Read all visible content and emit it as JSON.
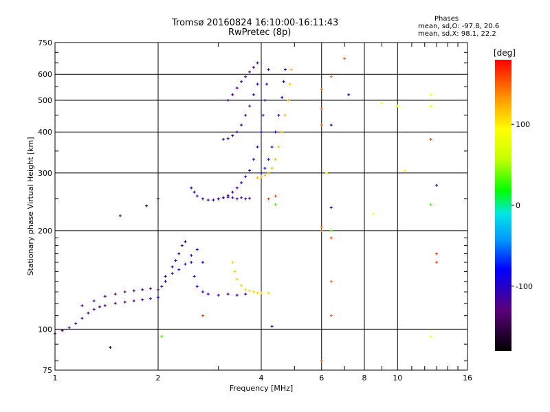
{
  "chart_data": {
    "type": "scatter",
    "title": "Tromsø 20160824 16:10:00-16:11:43",
    "subtitle": "RwPretec (8p)",
    "xlabel": "Frequency [MHz]",
    "ylabel": "Stationary phase Virtual Height [km]",
    "xscale": "log",
    "yscale": "log",
    "xlim": [
      1,
      16
    ],
    "ylim": [
      75,
      750
    ],
    "xticks": [
      1,
      2,
      4,
      6,
      8,
      10,
      16
    ],
    "yticks": [
      75,
      100,
      200,
      300,
      400,
      500,
      600,
      750
    ],
    "grid": true,
    "colorbar": {
      "label": "[deg]",
      "range": [
        -180,
        180
      ],
      "ticks": [
        100,
        0,
        -100
      ]
    },
    "phase_stats": {
      "heading": "Phases",
      "line_o": "mean, sd,O: -97.8, 20.6",
      "line_x": "mean, sd,X:  98.1, 22.2"
    },
    "traces": [
      {
        "phase": -125,
        "points": [
          [
            1.0,
            97
          ],
          [
            1.05,
            99
          ],
          [
            1.1,
            101
          ],
          [
            1.15,
            104
          ],
          [
            1.2,
            108
          ],
          [
            1.25,
            112
          ],
          [
            1.3,
            115
          ],
          [
            1.35,
            117
          ],
          [
            1.4,
            118
          ],
          [
            1.5,
            120
          ],
          [
            1.6,
            121
          ],
          [
            1.7,
            122
          ],
          [
            1.8,
            123
          ],
          [
            1.9,
            124
          ],
          [
            2.0,
            125
          ]
        ]
      },
      {
        "phase": -130,
        "points": [
          [
            1.2,
            118
          ],
          [
            1.3,
            122
          ],
          [
            1.4,
            126
          ],
          [
            1.5,
            128
          ],
          [
            1.6,
            130
          ],
          [
            1.7,
            131
          ],
          [
            1.8,
            132
          ],
          [
            1.9,
            133
          ],
          [
            2.0,
            132
          ]
        ]
      },
      {
        "phase": -110,
        "points": [
          [
            2.0,
            125
          ],
          [
            2.05,
            135
          ],
          [
            2.1,
            145
          ],
          [
            2.2,
            155
          ],
          [
            2.25,
            162
          ],
          [
            2.3,
            170
          ],
          [
            2.35,
            180
          ],
          [
            2.4,
            185
          ],
          [
            2.5,
            160
          ],
          [
            2.55,
            145
          ],
          [
            2.6,
            135
          ],
          [
            2.7,
            130
          ],
          [
            2.8,
            128
          ],
          [
            3.0,
            127
          ],
          [
            3.2,
            128
          ],
          [
            3.4,
            127
          ],
          [
            3.6,
            128
          ]
        ]
      },
      {
        "phase": -100,
        "points": [
          [
            2.1,
            140
          ],
          [
            2.2,
            148
          ],
          [
            2.3,
            152
          ],
          [
            2.4,
            158
          ],
          [
            2.5,
            168
          ],
          [
            2.6,
            175
          ],
          [
            2.7,
            160
          ]
        ]
      },
      {
        "phase": 110,
        "points": [
          [
            3.3,
            160
          ],
          [
            3.35,
            150
          ],
          [
            3.4,
            142
          ],
          [
            3.5,
            136
          ],
          [
            3.6,
            132
          ],
          [
            3.7,
            131
          ],
          [
            3.8,
            130
          ],
          [
            3.9,
            129
          ],
          [
            4.0,
            129
          ],
          [
            4.2,
            129
          ]
        ]
      },
      {
        "phase": -105,
        "points": [
          [
            2.5,
            270
          ],
          [
            2.55,
            262
          ],
          [
            2.6,
            255
          ],
          [
            2.7,
            250
          ],
          [
            2.8,
            248
          ],
          [
            2.9,
            248
          ],
          [
            3.0,
            250
          ],
          [
            3.1,
            252
          ],
          [
            3.2,
            256
          ],
          [
            3.3,
            262
          ],
          [
            3.4,
            270
          ],
          [
            3.5,
            280
          ],
          [
            3.6,
            292
          ],
          [
            3.7,
            305
          ],
          [
            3.8,
            330
          ],
          [
            3.9,
            360
          ],
          [
            4.0,
            400
          ],
          [
            4.05,
            450
          ],
          [
            4.1,
            500
          ],
          [
            4.15,
            560
          ],
          [
            4.2,
            620
          ]
        ]
      },
      {
        "phase": -115,
        "points": [
          [
            3.0,
            250
          ],
          [
            3.1,
            252
          ],
          [
            3.2,
            253
          ],
          [
            3.3,
            252
          ],
          [
            3.4,
            250
          ],
          [
            3.5,
            252
          ],
          [
            3.6,
            250
          ],
          [
            3.7,
            251
          ]
        ]
      },
      {
        "phase": -110,
        "points": [
          [
            3.1,
            380
          ],
          [
            3.2,
            382
          ],
          [
            3.3,
            390
          ],
          [
            3.4,
            400
          ],
          [
            3.5,
            420
          ],
          [
            3.6,
            450
          ],
          [
            3.7,
            480
          ],
          [
            3.8,
            520
          ],
          [
            3.9,
            560
          ]
        ]
      },
      {
        "phase": -120,
        "points": [
          [
            3.2,
            500
          ],
          [
            3.3,
            520
          ],
          [
            3.4,
            545
          ],
          [
            3.5,
            570
          ],
          [
            3.6,
            590
          ],
          [
            3.7,
            610
          ],
          [
            3.8,
            630
          ],
          [
            3.9,
            650
          ]
        ]
      },
      {
        "phase": 120,
        "points": [
          [
            3.9,
            290
          ],
          [
            4.0,
            292
          ],
          [
            4.1,
            295
          ],
          [
            4.2,
            300
          ],
          [
            4.3,
            310
          ],
          [
            4.4,
            330
          ],
          [
            4.5,
            360
          ],
          [
            4.6,
            400
          ],
          [
            4.7,
            450
          ],
          [
            4.8,
            500
          ],
          [
            4.85,
            560
          ],
          [
            4.9,
            620
          ]
        ]
      },
      {
        "phase": -95,
        "points": [
          [
            4.0,
            300
          ],
          [
            4.1,
            310
          ],
          [
            4.2,
            330
          ],
          [
            4.3,
            360
          ],
          [
            4.4,
            400
          ],
          [
            4.5,
            450
          ],
          [
            4.6,
            510
          ],
          [
            4.65,
            570
          ],
          [
            4.7,
            620
          ]
        ]
      },
      {
        "phase": -140,
        "points": [
          [
            1.55,
            222
          ],
          [
            1.85,
            238
          ],
          [
            2.0,
            250
          ]
        ]
      },
      {
        "phase": 150,
        "points": [
          [
            6.0,
            540
          ],
          [
            6.0,
            470
          ],
          [
            6.0,
            420
          ],
          [
            6.0,
            205
          ],
          [
            6.0,
            200
          ],
          [
            6.4,
            590
          ],
          [
            7.0,
            670
          ],
          [
            6.4,
            140
          ],
          [
            6.4,
            110
          ],
          [
            6.0,
            80
          ]
        ]
      },
      {
        "phase": 95,
        "points": [
          [
            12.5,
            520
          ],
          [
            12.5,
            480
          ],
          [
            10.0,
            480
          ],
          [
            9.0,
            490
          ],
          [
            8.5,
            225
          ],
          [
            10.5,
            305
          ],
          [
            12.5,
            95
          ],
          [
            6.2,
            300
          ]
        ]
      },
      {
        "phase": 160,
        "points": [
          [
            13.0,
            170
          ],
          [
            13.0,
            160
          ],
          [
            12.5,
            380
          ],
          [
            6.4,
            190
          ],
          [
            4.2,
            250
          ],
          [
            4.4,
            255
          ],
          [
            2.7,
            110
          ]
        ]
      },
      {
        "phase": -105,
        "points": [
          [
            6.4,
            420
          ],
          [
            13.0,
            275
          ],
          [
            6.4,
            235
          ],
          [
            7.2,
            520
          ],
          [
            4.3,
            102
          ]
        ]
      },
      {
        "phase": 30,
        "points": [
          [
            2.05,
            95
          ],
          [
            6.4,
            200
          ],
          [
            12.5,
            240
          ],
          [
            4.4,
            240
          ]
        ]
      },
      {
        "phase": -160,
        "points": [
          [
            1.45,
            88
          ]
        ]
      }
    ]
  }
}
